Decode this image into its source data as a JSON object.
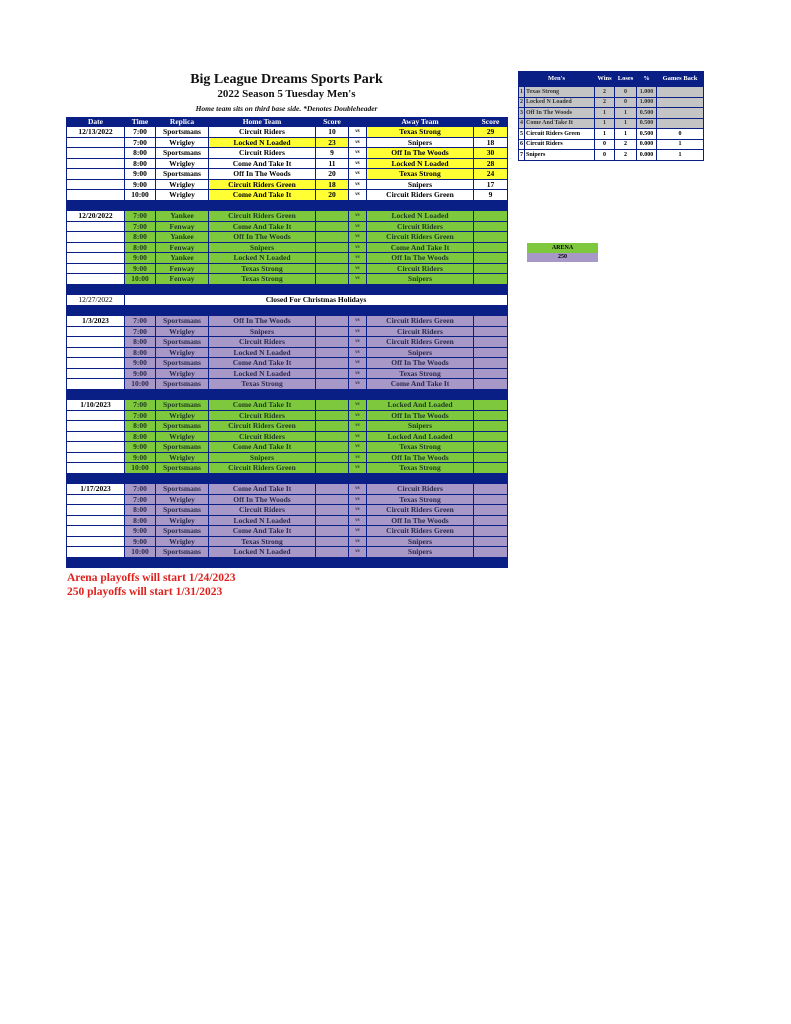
{
  "header": {
    "title": "Big League Dreams Sports Park",
    "subtitle": "2022 Season 5 Tuesday Men's",
    "note": "Home team sits on third base side.  *Denotes Doubleheader"
  },
  "columns": [
    "Date",
    "Time",
    "Replica",
    "Home Team",
    "Score",
    "",
    "Away Team",
    "Score"
  ],
  "vs_label": "vs",
  "colors": {
    "header": "#0a1f86",
    "winner": "#ffff33",
    "arena": "#7ec83e",
    "field250": "#a898c8"
  },
  "blocks": [
    {
      "date": "12/13/2022",
      "style": "w",
      "games": [
        [
          "7:00",
          "Sportsmans",
          "Circuit Riders",
          "10",
          "Texas Strong",
          "29"
        ],
        [
          "7:00",
          "Wrigley",
          "Locked N Loaded",
          "23",
          "Snipers",
          "18"
        ],
        [
          "8:00",
          "Sportsmans",
          "Circuit Riders",
          "9",
          "Off In The Woods",
          "30"
        ],
        [
          "8:00",
          "Wrigley",
          "Come And Take It",
          "11",
          "Locked N Loaded",
          "28"
        ],
        [
          "9:00",
          "Sportsmans",
          "Off In The Woods",
          "20",
          "Texas Strong",
          "24"
        ],
        [
          "9:00",
          "Wrigley",
          "Circuit Riders Green",
          "18",
          "Snipers",
          "17"
        ],
        [
          "10:00",
          "Wrigley",
          "Come And Take It",
          "20",
          "Circuit Riders Green",
          "9"
        ]
      ]
    },
    {
      "date": "12/20/2022",
      "style": "g",
      "games": [
        [
          "7:00",
          "Yankee",
          "Circuit Riders Green",
          "",
          "Locked N Loaded",
          ""
        ],
        [
          "7:00",
          "Fenway",
          "Come And Take It",
          "",
          "Circuit Riders",
          ""
        ],
        [
          "8:00",
          "Yankee",
          "Off In The Woods",
          "",
          "Circuit Riders Green",
          ""
        ],
        [
          "8:00",
          "Fenway",
          "Snipers",
          "",
          "Come And Take It",
          ""
        ],
        [
          "9:00",
          "Yankee",
          "Locked N Loaded",
          "",
          "Off In The Woods",
          ""
        ],
        [
          "9:00",
          "Fenway",
          "Texas Strong",
          "",
          "Circuit Riders",
          ""
        ],
        [
          "10:00",
          "Fenway",
          "Texas Strong",
          "",
          "Snipers",
          ""
        ]
      ]
    },
    {
      "date": "12/27/2022",
      "closed": "Closed For Christmas Holidays"
    },
    {
      "date": "1/3/2023",
      "style": "p",
      "games": [
        [
          "7:00",
          "Sportsmans",
          "Off In The Woods",
          "",
          "Circuit Riders Green",
          ""
        ],
        [
          "7:00",
          "Wrigley",
          "Snipers",
          "",
          "Circuit Riders",
          ""
        ],
        [
          "8:00",
          "Sportsmans",
          "Circuit Riders",
          "",
          "Circuit Riders Green",
          ""
        ],
        [
          "8:00",
          "Wrigley",
          "Locked N Loaded",
          "",
          "Snipers",
          ""
        ],
        [
          "9:00",
          "Sportsmans",
          "Come And Take It",
          "",
          "Off In The Woods",
          ""
        ],
        [
          "9:00",
          "Wrigley",
          "Locked N Loaded",
          "",
          "Texas Strong",
          ""
        ],
        [
          "10:00",
          "Sportsmans",
          "Texas Strong",
          "",
          "Come And Take It",
          ""
        ]
      ]
    },
    {
      "date": "1/10/2023",
      "style": "g",
      "games": [
        [
          "7:00",
          "Sportsmans",
          "Come And Take It",
          "",
          "Locked And Loaded",
          ""
        ],
        [
          "7:00",
          "Wrigley",
          "Circuit Riders",
          "",
          "Off In The Woods",
          ""
        ],
        [
          "8:00",
          "Sportsmans",
          "Circuit Riders Green",
          "",
          "Snipers",
          ""
        ],
        [
          "8:00",
          "Wrigley",
          "Circuit Riders",
          "",
          "Locked And Loaded",
          ""
        ],
        [
          "9:00",
          "Sportsmans",
          "Come And Take It",
          "",
          "Texas Strong",
          ""
        ],
        [
          "9:00",
          "Wrigley",
          "Snipers",
          "",
          "Off In The Woods",
          ""
        ],
        [
          "10:00",
          "Sportsmans",
          "Circuit Riders Green",
          "",
          "Texas Strong",
          ""
        ]
      ]
    },
    {
      "date": "1/17/2023",
      "style": "p",
      "games": [
        [
          "7:00",
          "Sportsmans",
          "Come And Take It",
          "",
          "Circuit Riders",
          ""
        ],
        [
          "7:00",
          "Wrigley",
          "Off In The Woods",
          "",
          "Texas Strong",
          ""
        ],
        [
          "8:00",
          "Sportsmans",
          "Circuit Riders",
          "",
          "Circuit Riders Green",
          ""
        ],
        [
          "8:00",
          "Wrigley",
          "Locked N Loaded",
          "",
          "Off In The Woods",
          ""
        ],
        [
          "9:00",
          "Sportsmans",
          "Come And Take It",
          "",
          "Circuit Riders Green",
          ""
        ],
        [
          "9:00",
          "Wrigley",
          "Texas Strong",
          "",
          "Snipers",
          ""
        ],
        [
          "10:00",
          "Sportsmans",
          "Locked N Loaded",
          "",
          "Snipers",
          ""
        ]
      ]
    }
  ],
  "standings": {
    "columns": [
      "Men's",
      "Wins",
      "Loses",
      "%",
      "Games Back"
    ],
    "rows": [
      {
        "rank": "1",
        "team": "Texas Strong",
        "wins": "2",
        "loses": "0",
        "pct": "1.000",
        "gb": ""
      },
      {
        "rank": "2",
        "team": "Locked N Loaded",
        "wins": "2",
        "loses": "0",
        "pct": "1.000",
        "gb": ""
      },
      {
        "rank": "3",
        "team": "Off In The Woods",
        "wins": "1",
        "loses": "1",
        "pct": "0.500",
        "gb": ""
      },
      {
        "rank": "4",
        "team": "Come And Take It",
        "wins": "1",
        "loses": "1",
        "pct": "0.500",
        "gb": ""
      },
      {
        "rank": "5",
        "team": "Circuit Riders Green",
        "wins": "1",
        "loses": "1",
        "pct": "0.500",
        "gb": "0"
      },
      {
        "rank": "6",
        "team": "Circuit Riders",
        "wins": "0",
        "loses": "2",
        "pct": "0.000",
        "gb": "1"
      },
      {
        "rank": "7",
        "team": "Snipers",
        "wins": "0",
        "loses": "2",
        "pct": "0.000",
        "gb": "1"
      }
    ]
  },
  "legend": {
    "arena": "ARENA",
    "field250": "250"
  },
  "notes": [
    "Arena playoffs will start 1/24/2023",
    "250 playoffs will start 1/31/2023"
  ]
}
